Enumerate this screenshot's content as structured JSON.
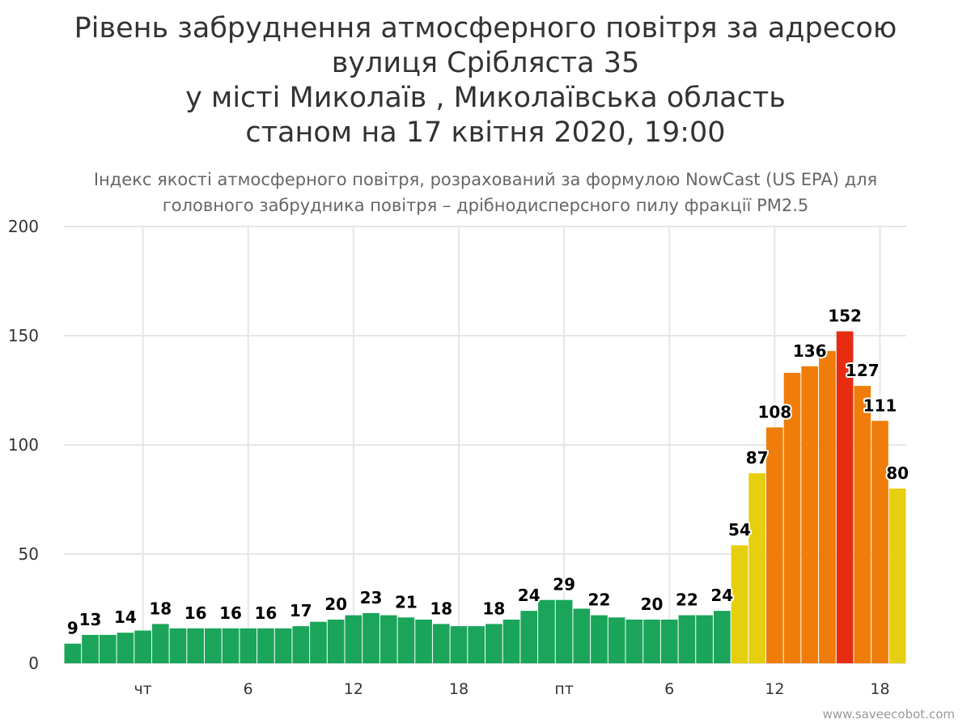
{
  "title_lines": [
    "Рівень забруднення атмосферного повітря за адресою",
    "вулиця Срібляста 35",
    "у місті Миколаїв , Миколаївська область",
    "станом на 17 квітня 2020, 19:00"
  ],
  "subtitle_lines": [
    "Індекс якості атмосферного повітря, розрахований за формулою NowCast (US EPA) для",
    "головного забрудника повітря – дрібнодисперсного пилу фракції PM2.5"
  ],
  "credit": "www.saveecobot.com",
  "colors": {
    "good": "#1aa55a",
    "moderate": "#e5cf0f",
    "unhealthy_sensitive": "#f07d0a",
    "unhealthy": "#e62d12",
    "grid": "#e6e6e6"
  },
  "chart_data": {
    "type": "bar",
    "title": "Рівень забруднення атмосферного повітря за адресою вулиця Срібляста 35 у місті Миколаїв , Миколаївська область станом на 17 квітня 2020, 19:00",
    "subtitle": "Індекс якості атмосферного повітря, розрахований за формулою NowCast (US EPA) для головного забрудника повітря – дрібнодисперсного пилу фракції PM2.5",
    "ylim": [
      0,
      200
    ],
    "y_ticks": [
      0,
      50,
      100,
      150,
      200
    ],
    "grid": true,
    "x_tick_labels": [
      {
        "label": "чт",
        "index": 4
      },
      {
        "label": "6",
        "index": 10
      },
      {
        "label": "12",
        "index": 16
      },
      {
        "label": "18",
        "index": 22
      },
      {
        "label": "пт",
        "index": 28
      },
      {
        "label": "6",
        "index": 34
      },
      {
        "label": "12",
        "index": 40
      },
      {
        "label": "18",
        "index": 46
      }
    ],
    "values": [
      9,
      13,
      13,
      14,
      15,
      18,
      16,
      16,
      16,
      16,
      16,
      16,
      16,
      17,
      19,
      20,
      22,
      23,
      22,
      21,
      20,
      18,
      17,
      17,
      18,
      20,
      24,
      29,
      29,
      25,
      22,
      21,
      20,
      20,
      20,
      22,
      22,
      24,
      54,
      87,
      108,
      133,
      136,
      143,
      152,
      127,
      111,
      80
    ],
    "labels": [
      "9",
      "13",
      "",
      "14",
      "",
      "18",
      "",
      "16",
      "",
      "16",
      "",
      "16",
      "",
      "17",
      "",
      "20",
      "",
      "23",
      "",
      "21",
      "",
      "18",
      "",
      "",
      "18",
      "",
      "24",
      "",
      "29",
      "",
      "22",
      "",
      "",
      "20",
      "",
      "22",
      "",
      "24",
      "54",
      "87",
      "108",
      "",
      "136",
      "",
      "152",
      "127",
      "111",
      "80"
    ],
    "label_offsets_px": {}
  }
}
